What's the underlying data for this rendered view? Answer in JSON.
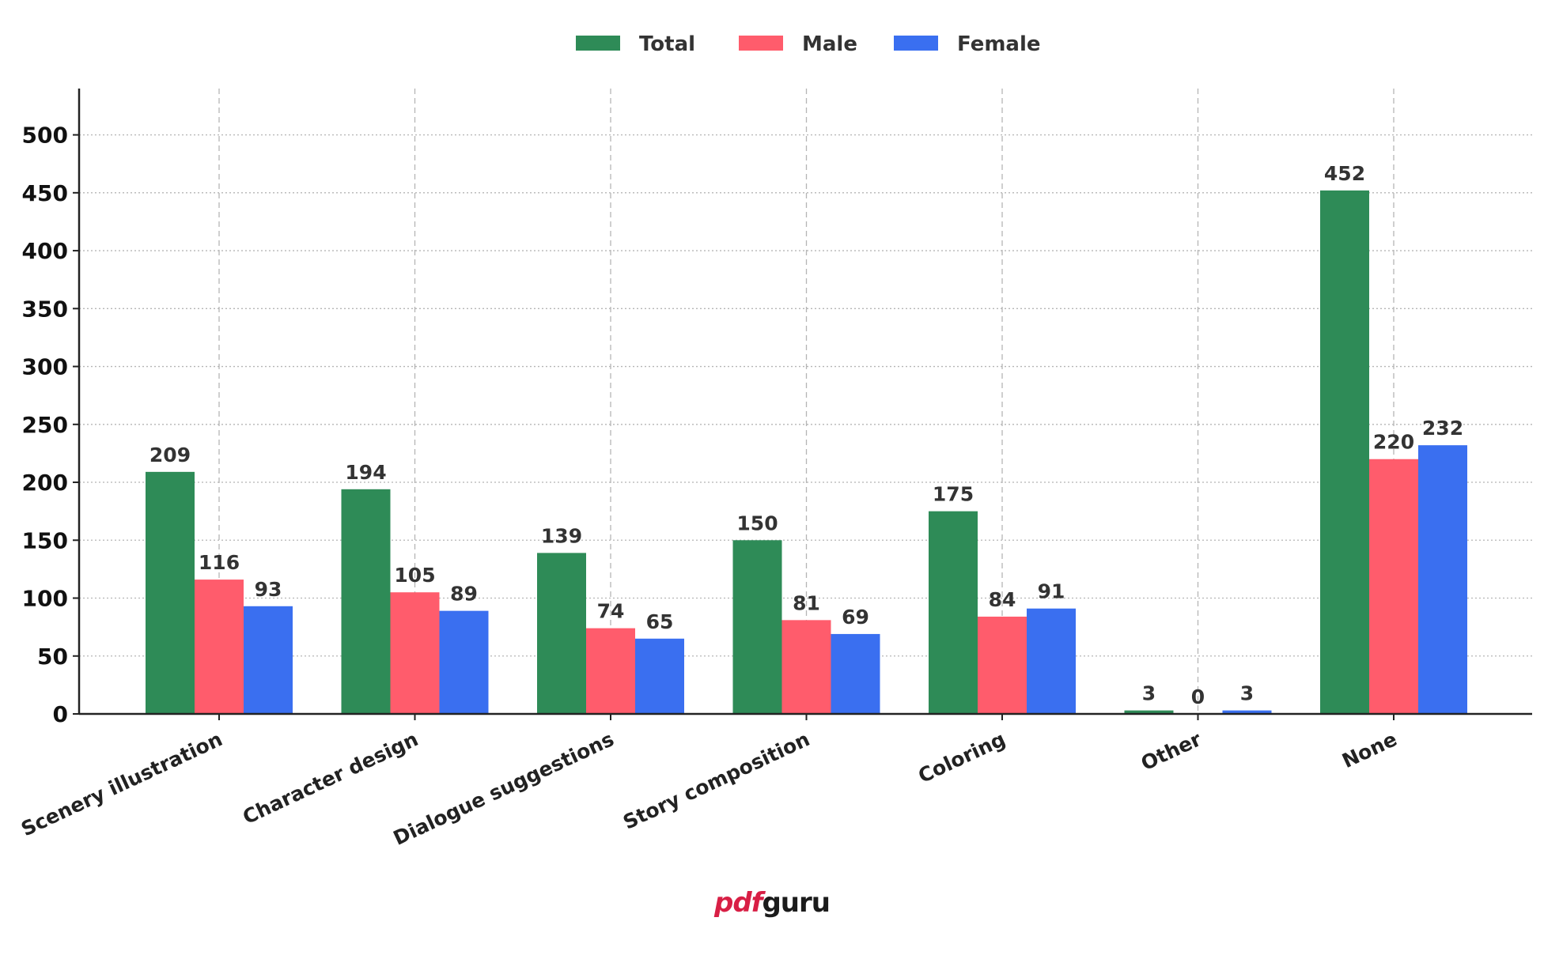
{
  "chart_data": {
    "type": "bar",
    "title": "",
    "xlabel": "",
    "ylabel": "",
    "ylim": [
      0,
      540
    ],
    "yticks": [
      0,
      50,
      100,
      150,
      200,
      250,
      300,
      350,
      400,
      450,
      500
    ],
    "grid": true,
    "legend_position": "top-center",
    "categories": [
      "Scenery illustration",
      "Character design",
      "Dialogue suggestions",
      "Story composition",
      "Coloring",
      "Other",
      "None"
    ],
    "series": [
      {
        "name": "Total",
        "color": "#2e8b57",
        "values": [
          209,
          194,
          139,
          150,
          175,
          3,
          452
        ]
      },
      {
        "name": "Male",
        "color": "#ff5c6c",
        "values": [
          116,
          105,
          74,
          81,
          84,
          0,
          220
        ]
      },
      {
        "name": "Female",
        "color": "#3a6ff0",
        "values": [
          93,
          89,
          65,
          69,
          91,
          3,
          232
        ]
      }
    ]
  },
  "brand": {
    "part1": "pdf",
    "part2": "guru"
  }
}
